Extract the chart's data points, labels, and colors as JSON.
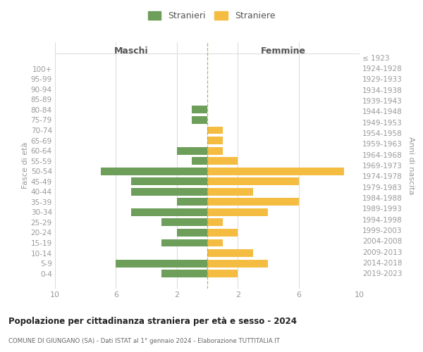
{
  "age_groups": [
    "0-4",
    "5-9",
    "10-14",
    "15-19",
    "20-24",
    "25-29",
    "30-34",
    "35-39",
    "40-44",
    "45-49",
    "50-54",
    "55-59",
    "60-64",
    "65-69",
    "70-74",
    "75-79",
    "80-84",
    "85-89",
    "90-94",
    "95-99",
    "100+"
  ],
  "birth_years": [
    "2019-2023",
    "2014-2018",
    "2009-2013",
    "2004-2008",
    "1999-2003",
    "1994-1998",
    "1989-1993",
    "1984-1988",
    "1979-1983",
    "1974-1978",
    "1969-1973",
    "1964-1968",
    "1959-1963",
    "1954-1958",
    "1949-1953",
    "1944-1948",
    "1939-1943",
    "1934-1938",
    "1929-1933",
    "1924-1928",
    "≤ 1923"
  ],
  "males": [
    3,
    6,
    0,
    3,
    2,
    3,
    5,
    2,
    5,
    5,
    7,
    1,
    2,
    0,
    0,
    1,
    1,
    0,
    0,
    0,
    0
  ],
  "females": [
    2,
    4,
    3,
    1,
    2,
    1,
    4,
    6,
    3,
    6,
    9,
    2,
    1,
    1,
    1,
    0,
    0,
    0,
    0,
    0,
    0
  ],
  "male_color": "#6d9e5a",
  "female_color": "#f5bc42",
  "male_label": "Stranieri",
  "female_label": "Straniere",
  "title_main": "Popolazione per cittadinanza straniera per età e sesso - 2024",
  "title_sub": "COMUNE DI GIUNGANO (SA) - Dati ISTAT al 1° gennaio 2024 - Elaborazione TUTTITALIA.IT",
  "xlabel_left": "Maschi",
  "xlabel_right": "Femmine",
  "ylabel_left": "Fasce di età",
  "ylabel_right": "Anni di nascita",
  "xlim": 10,
  "xticks": [
    -10,
    -6,
    -2,
    2,
    6,
    10
  ],
  "background_color": "#ffffff",
  "grid_color": "#dddddd",
  "label_color": "#999999"
}
